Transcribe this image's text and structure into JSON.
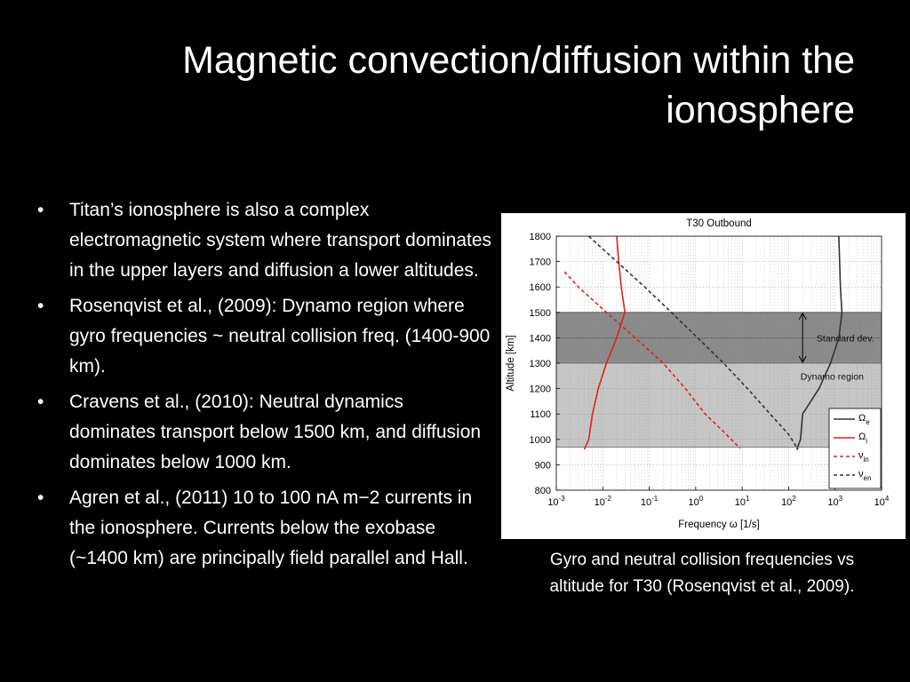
{
  "slide": {
    "title": "Magnetic convection/diffusion within the ionosphere",
    "bullets": [
      "Titan’s ionosphere is also a complex electromagnetic system where transport dominates in the upper layers and diffusion a lower altitudes.",
      "Rosenqvist et al., (2009): Dynamo region where gyro frequencies  ~ neutral collision freq. (1400-900 km).",
      "Cravens et al., (2010): Neutral dynamics dominates transport below 1500 km, and diffusion dominates below 1000 km.",
      " Agren et al., (2011) 10 to 100 nA m−2 currents in the ionosphere. Currents below the exobase (~1400 km) are principally field parallel and Hall."
    ],
    "bullet_glyph": "•",
    "caption": "Gyro and neutral collision frequencies vs altitude for T30 (Rosenqvist et al., 2009)."
  },
  "chart_data": {
    "type": "line",
    "title": "T30 Outbound",
    "xlabel": "Frequency ω [1/s]",
    "ylabel": "Altitude [km]",
    "xscale": "log",
    "xlim": [
      0.001,
      10000
    ],
    "ylim": [
      800,
      1800
    ],
    "x_ticks": [
      "10^-3",
      "10^-2",
      "10^-1",
      "10^0",
      "10^1",
      "10^2",
      "10^3",
      "10^4"
    ],
    "y_ticks": [
      800,
      900,
      1000,
      1100,
      1200,
      1300,
      1400,
      1500,
      1600,
      1700,
      1800
    ],
    "grid": true,
    "bands": [
      {
        "label": "Standard dev.",
        "from": 1300,
        "to": 1500,
        "color": "#8a8a8a"
      },
      {
        "label": "Dynamo region",
        "from": 970,
        "to": 1500,
        "color": "#c6c6c6"
      }
    ],
    "band_center_line": 1400,
    "legend": {
      "placement": "bottom-right"
    },
    "series": [
      {
        "name": "Ωe",
        "color": "#333333",
        "style": "solid",
        "points": [
          [
            1200,
            1800
          ],
          [
            1250,
            1700
          ],
          [
            1300,
            1600
          ],
          [
            1400,
            1500
          ],
          [
            1200,
            1400
          ],
          [
            800,
            1300
          ],
          [
            450,
            1200
          ],
          [
            200,
            1100
          ],
          [
            180,
            1000
          ],
          [
            150,
            960
          ]
        ]
      },
      {
        "name": "Ωi",
        "color": "#e02020",
        "style": "solid",
        "points": [
          [
            0.02,
            1800
          ],
          [
            0.022,
            1700
          ],
          [
            0.025,
            1600
          ],
          [
            0.03,
            1500
          ],
          [
            0.02,
            1400
          ],
          [
            0.012,
            1300
          ],
          [
            0.008,
            1200
          ],
          [
            0.006,
            1100
          ],
          [
            0.005,
            1000
          ],
          [
            0.004,
            960
          ]
        ]
      },
      {
        "name": "νin",
        "color": "#e02020",
        "style": "dashed",
        "points": [
          [
            0.0015,
            1660
          ],
          [
            0.003,
            1600
          ],
          [
            0.012,
            1500
          ],
          [
            0.05,
            1400
          ],
          [
            0.2,
            1300
          ],
          [
            0.6,
            1200
          ],
          [
            1.6,
            1100
          ],
          [
            4,
            1030
          ],
          [
            9,
            965
          ]
        ]
      },
      {
        "name": "νen",
        "color": "#333333",
        "style": "dashed",
        "points": [
          [
            0.005,
            1800
          ],
          [
            0.02,
            1700
          ],
          [
            0.08,
            1600
          ],
          [
            0.3,
            1500
          ],
          [
            1.1,
            1400
          ],
          [
            4,
            1300
          ],
          [
            13,
            1200
          ],
          [
            40,
            1100
          ],
          [
            100,
            1020
          ],
          [
            160,
            960
          ]
        ]
      }
    ]
  }
}
